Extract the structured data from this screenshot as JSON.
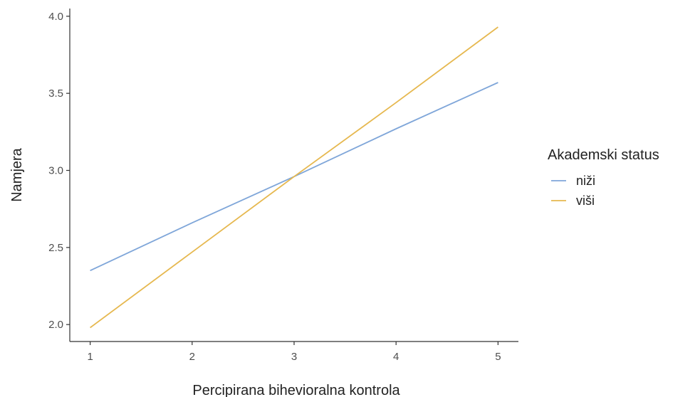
{
  "chart_data": {
    "type": "line",
    "x": [
      1,
      2,
      3,
      4,
      5
    ],
    "xlabel": "Percipirana bihevioralna kontrola",
    "ylabel": "Namjera",
    "xlim": [
      0.8,
      5.2
    ],
    "ylim": [
      1.89,
      4.05
    ],
    "xticks": [
      1,
      2,
      3,
      4,
      5
    ],
    "xtick_labels": [
      "1",
      "2",
      "3",
      "4",
      "5"
    ],
    "yticks": [
      2.0,
      2.5,
      3.0,
      3.5,
      4.0
    ],
    "ytick_labels": [
      "2.0",
      "2.5",
      "3.0",
      "3.5",
      "4.0"
    ],
    "grid": false,
    "legend": {
      "title": "Akademski status",
      "placement": "right"
    },
    "series": [
      {
        "name": "niži",
        "color": "#7fa6d9",
        "values": [
          2.35,
          2.66,
          2.96,
          3.27,
          3.57
        ]
      },
      {
        "name": "viši",
        "color": "#e6b84f",
        "values": [
          1.98,
          2.47,
          2.96,
          3.44,
          3.93
        ]
      }
    ]
  }
}
